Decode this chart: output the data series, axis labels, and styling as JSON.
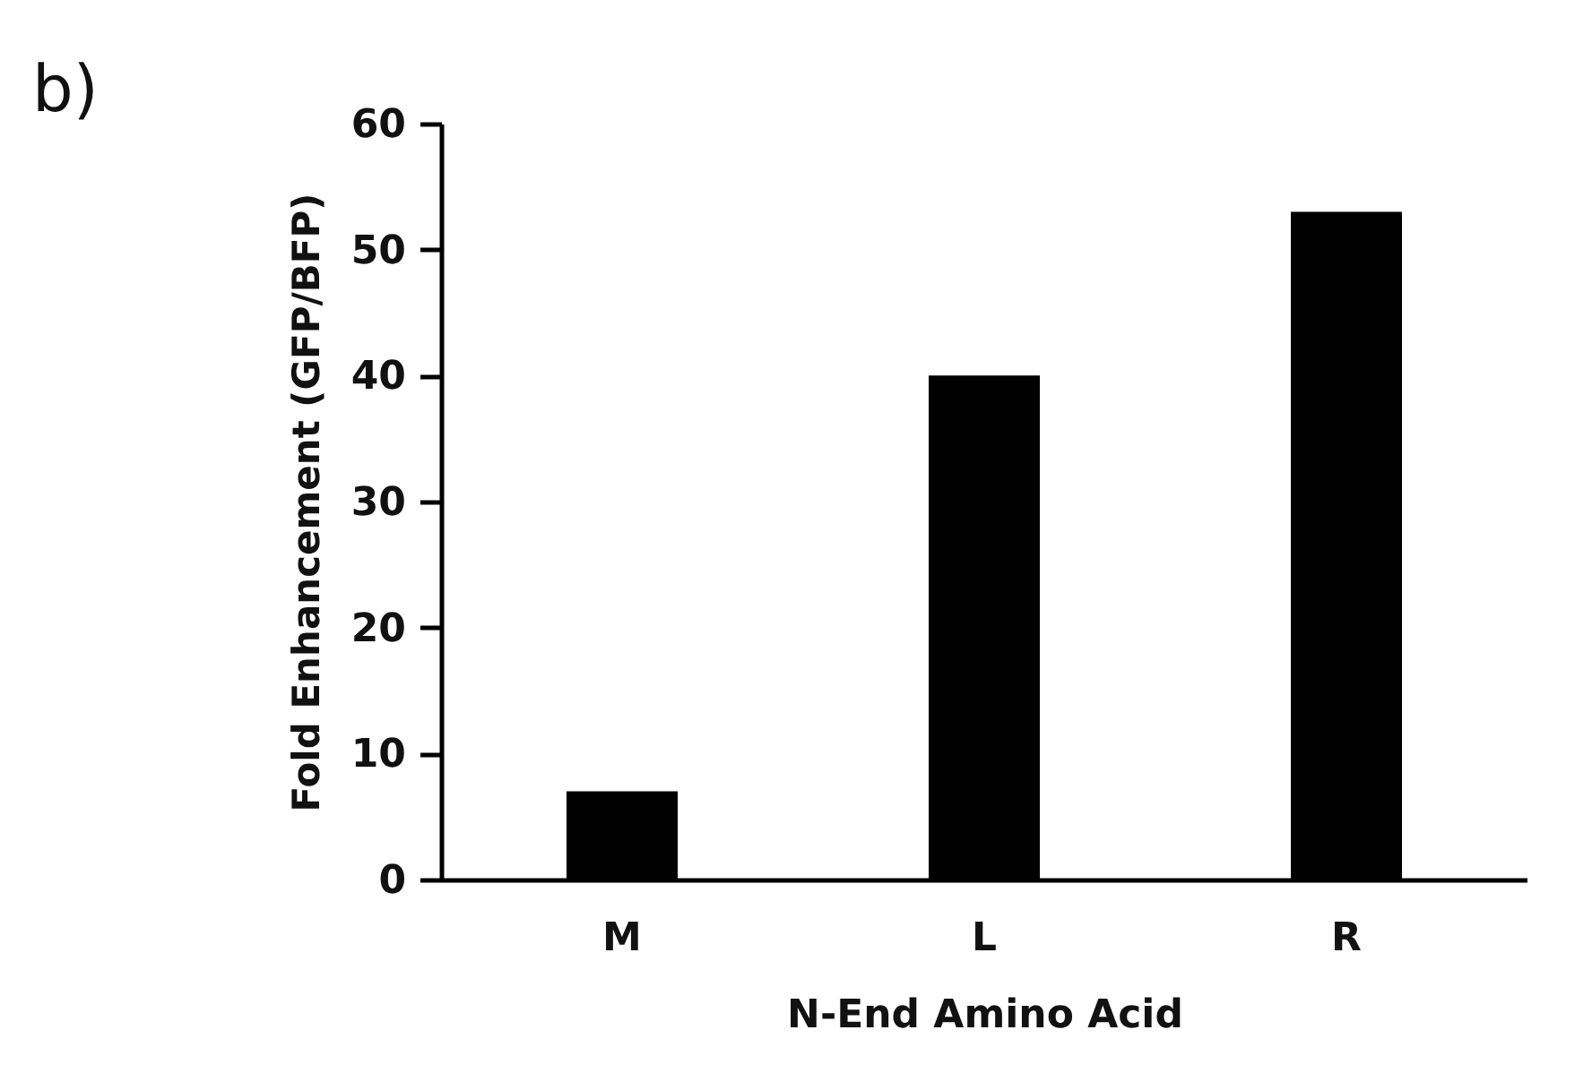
{
  "chart_data": {
    "type": "bar",
    "xlabel": "N-End Amino Acid",
    "ylabel": "Fold Enhancement (GFP/BFP)",
    "categories": [
      "M",
      "L",
      "R"
    ],
    "values": [
      7,
      40,
      53
    ],
    "color": "#000000",
    "ylim": [
      0,
      60
    ],
    "yticks": [
      0,
      10,
      20,
      30,
      40,
      50,
      60
    ],
    "grid": false,
    "annotations": [
      "b)"
    ]
  }
}
